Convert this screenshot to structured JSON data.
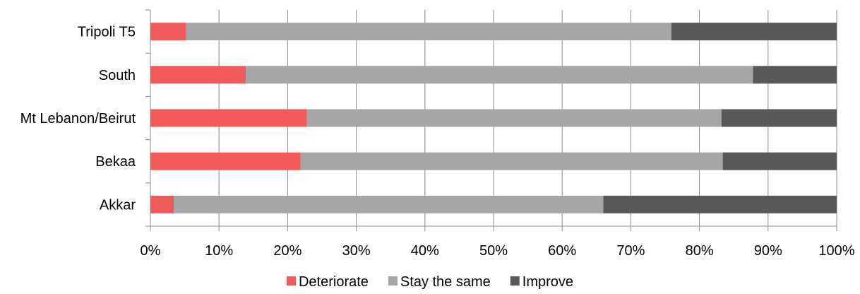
{
  "chart_data": {
    "type": "bar",
    "orientation": "horizontal",
    "stacked": true,
    "percent_stacked": true,
    "categories": [
      "Tripoli T5",
      "South",
      "Mt Lebanon/Beirut",
      "Bekaa",
      "Akkar"
    ],
    "series": [
      {
        "name": "Deteriorate",
        "color": "#f05a5b",
        "values": [
          5.2,
          13.9,
          22.8,
          21.9,
          3.4
        ]
      },
      {
        "name": "Stay the same",
        "color": "#a6a6a6",
        "values": [
          70.7,
          73.9,
          60.4,
          61.5,
          62.6
        ]
      },
      {
        "name": "Improve",
        "color": "#595959",
        "values": [
          24.1,
          12.2,
          16.8,
          16.6,
          34.0
        ]
      }
    ],
    "xlim": [
      0,
      100
    ],
    "x_ticks": [
      "0%",
      "10%",
      "20%",
      "30%",
      "40%",
      "50%",
      "60%",
      "70%",
      "80%",
      "90%",
      "100%"
    ],
    "grid": "vertical",
    "legend_position": "bottom"
  }
}
